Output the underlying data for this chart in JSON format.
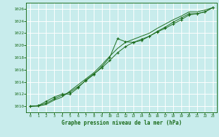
{
  "title": "Graphe pression niveau de la mer (hPa)",
  "bg_color": "#c8ecec",
  "grid_color": "#ffffff",
  "line_color": "#1a6b1a",
  "marker_color": "#1a6b1a",
  "xlim": [
    -0.5,
    23.5
  ],
  "ylim": [
    1009.0,
    1027.0
  ],
  "xticks": [
    0,
    1,
    2,
    3,
    4,
    5,
    6,
    7,
    8,
    9,
    10,
    11,
    12,
    13,
    14,
    15,
    16,
    17,
    18,
    19,
    20,
    21,
    22,
    23
  ],
  "yticks": [
    1010,
    1012,
    1014,
    1016,
    1018,
    1020,
    1022,
    1024,
    1026
  ],
  "series1_x": [
    0,
    1,
    2,
    3,
    4,
    5,
    6,
    7,
    8,
    9,
    10,
    11,
    12,
    13,
    14,
    15,
    16,
    17,
    18,
    19,
    20,
    21,
    22,
    23
  ],
  "series1_y": [
    1010.0,
    1010.1,
    1010.5,
    1011.2,
    1011.8,
    1012.3,
    1013.2,
    1014.2,
    1015.2,
    1016.5,
    1018.0,
    1021.1,
    1020.6,
    1020.5,
    1020.8,
    1021.5,
    1022.2,
    1022.8,
    1023.5,
    1024.2,
    1025.0,
    1025.2,
    1025.5,
    1026.2
  ],
  "series2_x": [
    0,
    1,
    2,
    3,
    4,
    5,
    6,
    7,
    8,
    9,
    10,
    11,
    12,
    13,
    14,
    15,
    16,
    17,
    18,
    19,
    20,
    21,
    22,
    23
  ],
  "series2_y": [
    1010.0,
    1010.1,
    1010.8,
    1011.5,
    1012.0,
    1012.0,
    1013.0,
    1014.3,
    1015.3,
    1016.3,
    1017.5,
    1018.8,
    1019.8,
    1020.5,
    1021.0,
    1021.5,
    1022.3,
    1023.0,
    1023.8,
    1024.5,
    1025.2,
    1025.2,
    1025.5,
    1026.2
  ],
  "series3_x": [
    0,
    1,
    2,
    3,
    4,
    5,
    6,
    7,
    8,
    9,
    10,
    11,
    12,
    13,
    14,
    15,
    16,
    17,
    18,
    19,
    20,
    21,
    22,
    23
  ],
  "series3_y": [
    1010.0,
    1010.0,
    1010.3,
    1011.0,
    1011.5,
    1012.5,
    1013.5,
    1014.5,
    1015.5,
    1016.8,
    1018.2,
    1019.5,
    1020.5,
    1021.0,
    1021.5,
    1022.0,
    1022.8,
    1023.5,
    1024.2,
    1024.8,
    1025.5,
    1025.5,
    1025.8,
    1026.2
  ]
}
